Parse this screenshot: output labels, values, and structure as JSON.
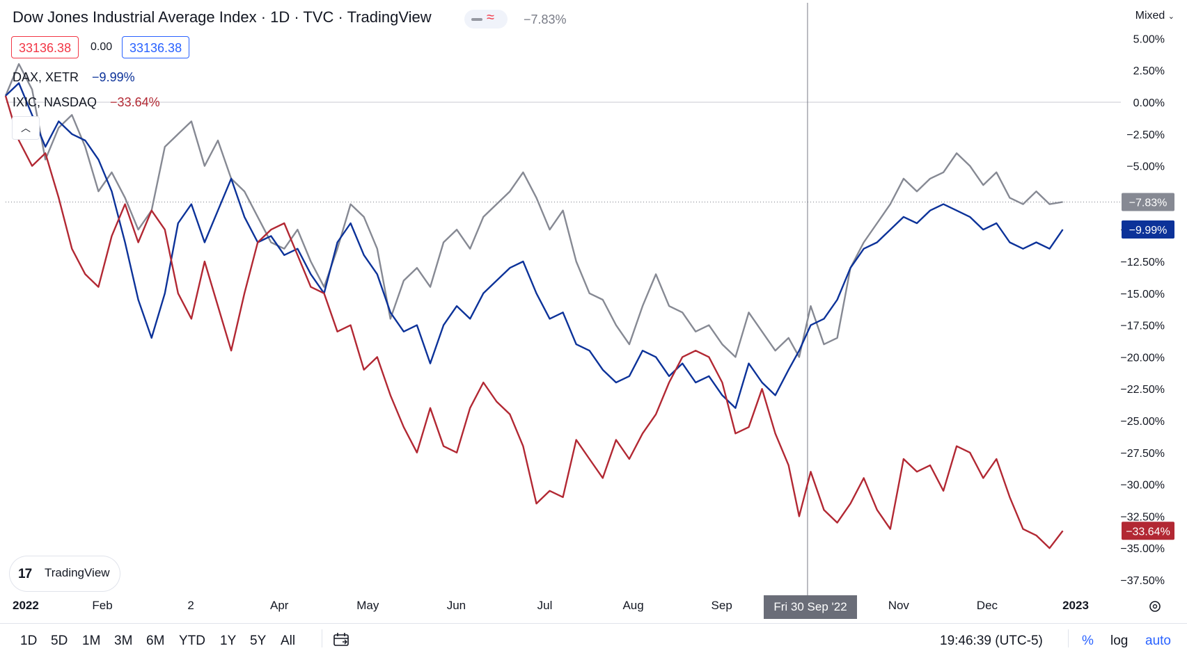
{
  "header": {
    "title": "Dow Jones Industrial Average Index · 1D · TVC · TradingView",
    "change": "−7.83%",
    "price_left": "33136.38",
    "price_mid": "0.00",
    "price_right": "33136.38",
    "scale_mode": "Mixed"
  },
  "legend": [
    {
      "name": "DAX, XETR",
      "value": "−9.99%",
      "color": "#0c3299"
    },
    {
      "name": "IXIC, NASDAQ",
      "value": "−33.64%",
      "color": "#b22833"
    }
  ],
  "logo": {
    "mark": "17",
    "text": "TradingView"
  },
  "toolbar": {
    "ranges": [
      "1D",
      "5D",
      "1M",
      "3M",
      "6M",
      "YTD",
      "1Y",
      "5Y",
      "All"
    ],
    "clock": "19:46:39 (UTC-5)",
    "percent": "%",
    "log": "log",
    "auto": "auto"
  },
  "crosshair": {
    "date_label": "Fri 30 Sep '22"
  },
  "chart_data": {
    "type": "line",
    "y_unit": "%",
    "ylim": [
      -38.5,
      6.5
    ],
    "y_ticks": [
      "5.00%",
      "2.50%",
      "0.00%",
      "−2.50%",
      "−5.00%",
      "−7.50%",
      "−10.00%",
      "−12.50%",
      "−15.00%",
      "−17.50%",
      "−20.00%",
      "−22.50%",
      "−25.00%",
      "−27.50%",
      "−30.00%",
      "−32.50%",
      "−35.00%",
      "−37.50%"
    ],
    "x_labels": [
      "2022",
      "Feb",
      "2",
      "Apr",
      "May",
      "Jun",
      "Jul",
      "Aug",
      "Sep",
      "Oct",
      "Nov",
      "Dec",
      "2023"
    ],
    "x_months": [
      0,
      1,
      2,
      3,
      4,
      5,
      6,
      7,
      8,
      9,
      10,
      11,
      12
    ],
    "crosshair_x_month": 8.97,
    "series": [
      {
        "name": "Dow Jones Industrial Average Index",
        "color": "#868993",
        "last_label": "−7.83%",
        "x": [
          0,
          0.15,
          0.3,
          0.45,
          0.6,
          0.75,
          0.9,
          1.05,
          1.2,
          1.35,
          1.5,
          1.65,
          1.8,
          1.95,
          2.1,
          2.25,
          2.4,
          2.55,
          2.7,
          2.85,
          3.0,
          3.15,
          3.3,
          3.45,
          3.6,
          3.75,
          3.9,
          4.05,
          4.2,
          4.35,
          4.5,
          4.65,
          4.8,
          4.95,
          5.1,
          5.25,
          5.4,
          5.55,
          5.7,
          5.85,
          6.0,
          6.15,
          6.3,
          6.45,
          6.6,
          6.75,
          6.9,
          7.05,
          7.2,
          7.35,
          7.5,
          7.65,
          7.8,
          7.95,
          8.1,
          8.25,
          8.4,
          8.55,
          8.7,
          8.85,
          8.97,
          9.1,
          9.25,
          9.4,
          9.55,
          9.7,
          9.85,
          10.0,
          10.15,
          10.3,
          10.45,
          10.6,
          10.75,
          10.9,
          11.05,
          11.2,
          11.35,
          11.5,
          11.65,
          11.8,
          11.95
        ],
        "y": [
          0.5,
          3.0,
          1.0,
          -4.5,
          -2.0,
          -1.0,
          -3.5,
          -7.0,
          -5.5,
          -7.5,
          -10.0,
          -8.5,
          -3.5,
          -2.5,
          -1.5,
          -5.0,
          -3.0,
          -6.0,
          -7.0,
          -9.0,
          -11.0,
          -11.5,
          -10.0,
          -12.5,
          -14.5,
          -11.5,
          -8.0,
          -9.0,
          -11.5,
          -17.0,
          -14.0,
          -13.0,
          -14.5,
          -11.0,
          -10.0,
          -11.5,
          -9.0,
          -8.0,
          -7.0,
          -5.5,
          -7.5,
          -10.0,
          -8.5,
          -12.5,
          -15.0,
          -15.5,
          -17.5,
          -19.0,
          -16.0,
          -13.5,
          -16.0,
          -16.5,
          -18.0,
          -17.5,
          -19.0,
          -20.0,
          -16.5,
          -18.0,
          -19.5,
          -18.5,
          -20.0,
          -16.0,
          -19.0,
          -18.5,
          -13.0,
          -11.0,
          -9.5,
          -8.0,
          -6.0,
          -7.0,
          -6.0,
          -5.5,
          -4.0,
          -5.0,
          -6.5,
          -5.5,
          -7.5,
          -8.0,
          -7.0,
          -8.0,
          -7.83
        ]
      },
      {
        "name": "DAX, XETR",
        "color": "#0c3299",
        "last_label": "−9.99%",
        "x": [
          0,
          0.15,
          0.3,
          0.45,
          0.6,
          0.75,
          0.9,
          1.05,
          1.2,
          1.35,
          1.5,
          1.65,
          1.8,
          1.95,
          2.1,
          2.25,
          2.4,
          2.55,
          2.7,
          2.85,
          3.0,
          3.15,
          3.3,
          3.45,
          3.6,
          3.75,
          3.9,
          4.05,
          4.2,
          4.35,
          4.5,
          4.65,
          4.8,
          4.95,
          5.1,
          5.25,
          5.4,
          5.55,
          5.7,
          5.85,
          6.0,
          6.15,
          6.3,
          6.45,
          6.6,
          6.75,
          6.9,
          7.05,
          7.2,
          7.35,
          7.5,
          7.65,
          7.8,
          7.95,
          8.1,
          8.25,
          8.4,
          8.55,
          8.7,
          8.85,
          8.97,
          9.1,
          9.25,
          9.4,
          9.55,
          9.7,
          9.85,
          10.0,
          10.15,
          10.3,
          10.45,
          10.6,
          10.75,
          10.9,
          11.05,
          11.2,
          11.35,
          11.5,
          11.65,
          11.8,
          11.95
        ],
        "y": [
          0.5,
          1.5,
          -1.0,
          -3.5,
          -1.5,
          -2.5,
          -3.0,
          -4.5,
          -7.0,
          -11.0,
          -15.5,
          -18.5,
          -15.0,
          -9.5,
          -8.0,
          -11.0,
          -8.5,
          -6.0,
          -9.0,
          -11.0,
          -10.5,
          -12.0,
          -11.5,
          -13.5,
          -15.0,
          -11.0,
          -9.5,
          -12.0,
          -13.5,
          -16.5,
          -18.0,
          -17.5,
          -20.5,
          -17.5,
          -16.0,
          -17.0,
          -15.0,
          -14.0,
          -13.0,
          -12.5,
          -15.0,
          -17.0,
          -16.5,
          -19.0,
          -19.5,
          -21.0,
          -22.0,
          -21.5,
          -19.5,
          -20.0,
          -21.5,
          -20.5,
          -22.0,
          -21.5,
          -23.0,
          -24.0,
          -20.5,
          -22.0,
          -23.0,
          -21.0,
          -19.5,
          -17.5,
          -17.0,
          -15.5,
          -13.0,
          -11.5,
          -11.0,
          -10.0,
          -9.0,
          -9.5,
          -8.5,
          -8.0,
          -8.5,
          -9.0,
          -10.0,
          -9.5,
          -11.0,
          -11.5,
          -11.0,
          -11.5,
          -9.99
        ]
      },
      {
        "name": "IXIC, NASDAQ",
        "color": "#b22833",
        "last_label": "−33.64%",
        "x": [
          0,
          0.15,
          0.3,
          0.45,
          0.6,
          0.75,
          0.9,
          1.05,
          1.2,
          1.35,
          1.5,
          1.65,
          1.8,
          1.95,
          2.1,
          2.25,
          2.4,
          2.55,
          2.7,
          2.85,
          3.0,
          3.15,
          3.3,
          3.45,
          3.6,
          3.75,
          3.9,
          4.05,
          4.2,
          4.35,
          4.5,
          4.65,
          4.8,
          4.95,
          5.1,
          5.25,
          5.4,
          5.55,
          5.7,
          5.85,
          6.0,
          6.15,
          6.3,
          6.45,
          6.6,
          6.75,
          6.9,
          7.05,
          7.2,
          7.35,
          7.5,
          7.65,
          7.8,
          7.95,
          8.1,
          8.25,
          8.4,
          8.55,
          8.7,
          8.85,
          8.97,
          9.1,
          9.25,
          9.4,
          9.55,
          9.7,
          9.85,
          10.0,
          10.15,
          10.3,
          10.45,
          10.6,
          10.75,
          10.9,
          11.05,
          11.2,
          11.35,
          11.5,
          11.65,
          11.8,
          11.95
        ],
        "y": [
          0.5,
          -3.0,
          -5.0,
          -4.0,
          -7.5,
          -11.5,
          -13.5,
          -14.5,
          -10.5,
          -8.0,
          -11.0,
          -8.5,
          -10.0,
          -15.0,
          -17.0,
          -12.5,
          -16.0,
          -19.5,
          -15.0,
          -11.0,
          -10.0,
          -9.5,
          -12.0,
          -14.5,
          -15.0,
          -18.0,
          -17.5,
          -21.0,
          -20.0,
          -23.0,
          -25.5,
          -27.5,
          -24.0,
          -27.0,
          -27.5,
          -24.0,
          -22.0,
          -23.5,
          -24.5,
          -27.0,
          -31.5,
          -30.5,
          -31.0,
          -26.5,
          -28.0,
          -29.5,
          -26.5,
          -28.0,
          -26.0,
          -24.5,
          -22.0,
          -20.0,
          -19.5,
          -20.0,
          -22.0,
          -26.0,
          -25.5,
          -22.5,
          -26.0,
          -28.5,
          -32.5,
          -29.0,
          -32.0,
          -33.0,
          -31.5,
          -29.5,
          -32.0,
          -33.5,
          -28.0,
          -29.0,
          -28.5,
          -30.5,
          -27.0,
          -27.5,
          -29.5,
          -28.0,
          -31.0,
          -33.5,
          -34.0,
          -35.0,
          -33.64
        ]
      }
    ]
  }
}
